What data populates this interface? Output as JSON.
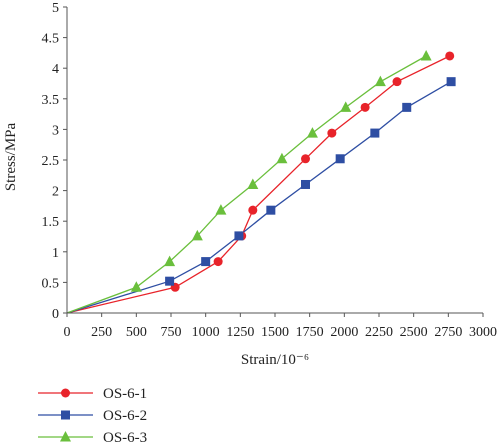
{
  "chart_data": {
    "type": "line",
    "title": "",
    "xlabel": "Strain/10⁻⁶",
    "ylabel": "Stress/MPa",
    "xlim": [
      0,
      3000
    ],
    "ylim": [
      0,
      5
    ],
    "x_ticks": [
      "0",
      "250",
      "500",
      "750",
      "1000",
      "1250",
      "1500",
      "1750",
      "2000",
      "2250",
      "2500",
      "2750",
      "3000"
    ],
    "y_ticks": [
      "0",
      "0.5",
      "1",
      "1.5",
      "2",
      "2.5",
      "3",
      "3.5",
      "4",
      "4.5",
      "5"
    ],
    "grid": false,
    "legend_position": "below",
    "series": [
      {
        "name": "OS-6-1",
        "color": "#e8232a",
        "marker": "circle",
        "points": [
          [
            0,
            0
          ],
          [
            780,
            0.42
          ],
          [
            1090,
            0.84
          ],
          [
            1260,
            1.26
          ],
          [
            1340,
            1.68
          ],
          [
            1720,
            2.52
          ],
          [
            1910,
            2.94
          ],
          [
            2150,
            3.36
          ],
          [
            2380,
            3.78
          ],
          [
            2760,
            4.2
          ]
        ]
      },
      {
        "name": "OS-6-2",
        "color": "#2e4ea3",
        "marker": "square",
        "points": [
          [
            0,
            0
          ],
          [
            740,
            0.52
          ],
          [
            1000,
            0.84
          ],
          [
            1240,
            1.26
          ],
          [
            1470,
            1.68
          ],
          [
            1720,
            2.1
          ],
          [
            1970,
            2.52
          ],
          [
            2220,
            2.94
          ],
          [
            2450,
            3.36
          ],
          [
            2770,
            3.78
          ]
        ]
      },
      {
        "name": "OS-6-3",
        "color": "#6abf3c",
        "marker": "triangle",
        "points": [
          [
            0,
            0
          ],
          [
            500,
            0.42
          ],
          [
            740,
            0.84
          ],
          [
            940,
            1.26
          ],
          [
            1110,
            1.68
          ],
          [
            1340,
            2.1
          ],
          [
            1550,
            2.52
          ],
          [
            1770,
            2.94
          ],
          [
            2010,
            3.36
          ],
          [
            2260,
            3.78
          ],
          [
            2590,
            4.2
          ]
        ]
      }
    ]
  }
}
